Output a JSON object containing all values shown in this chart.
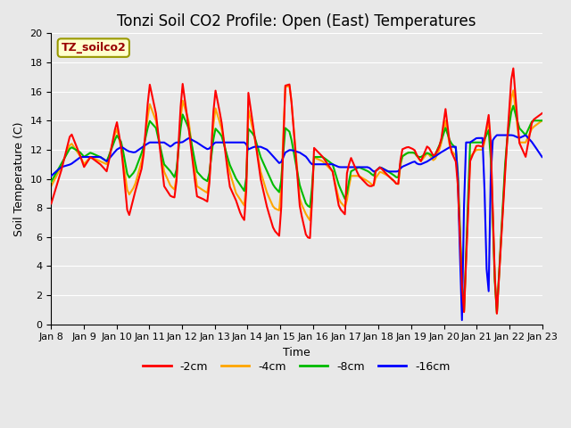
{
  "title": "Tonzi Soil CO2 Profile: Open (East) Temperatures",
  "xlabel": "Time",
  "ylabel": "Soil Temperature (C)",
  "ylim": [
    0,
    20
  ],
  "xlim": [
    0,
    15
  ],
  "x_tick_labels": [
    "Jan 8",
    "Jan 9",
    "Jan 10",
    "Jan 11",
    "Jan 12",
    "Jan 13",
    "Jan 14",
    "Jan 15",
    "Jan 16",
    "Jan 17",
    "Jan 18",
    "Jan 19",
    "Jan 20",
    "Jan 21",
    "Jan 22",
    "Jan 23"
  ],
  "legend_label": "TZ_soilco2",
  "series_labels": [
    "-2cm",
    "-4cm",
    "-8cm",
    "-16cm"
  ],
  "series_colors": [
    "#ff0000",
    "#ffa500",
    "#00bb00",
    "#0000ff"
  ],
  "line_width": 1.5,
  "background_color": "#e8e8e8",
  "plot_bg_color": "#e8e8e8",
  "grid_color": "#ffffff",
  "title_fontsize": 12,
  "axis_label_fontsize": 9,
  "tick_fontsize": 8
}
